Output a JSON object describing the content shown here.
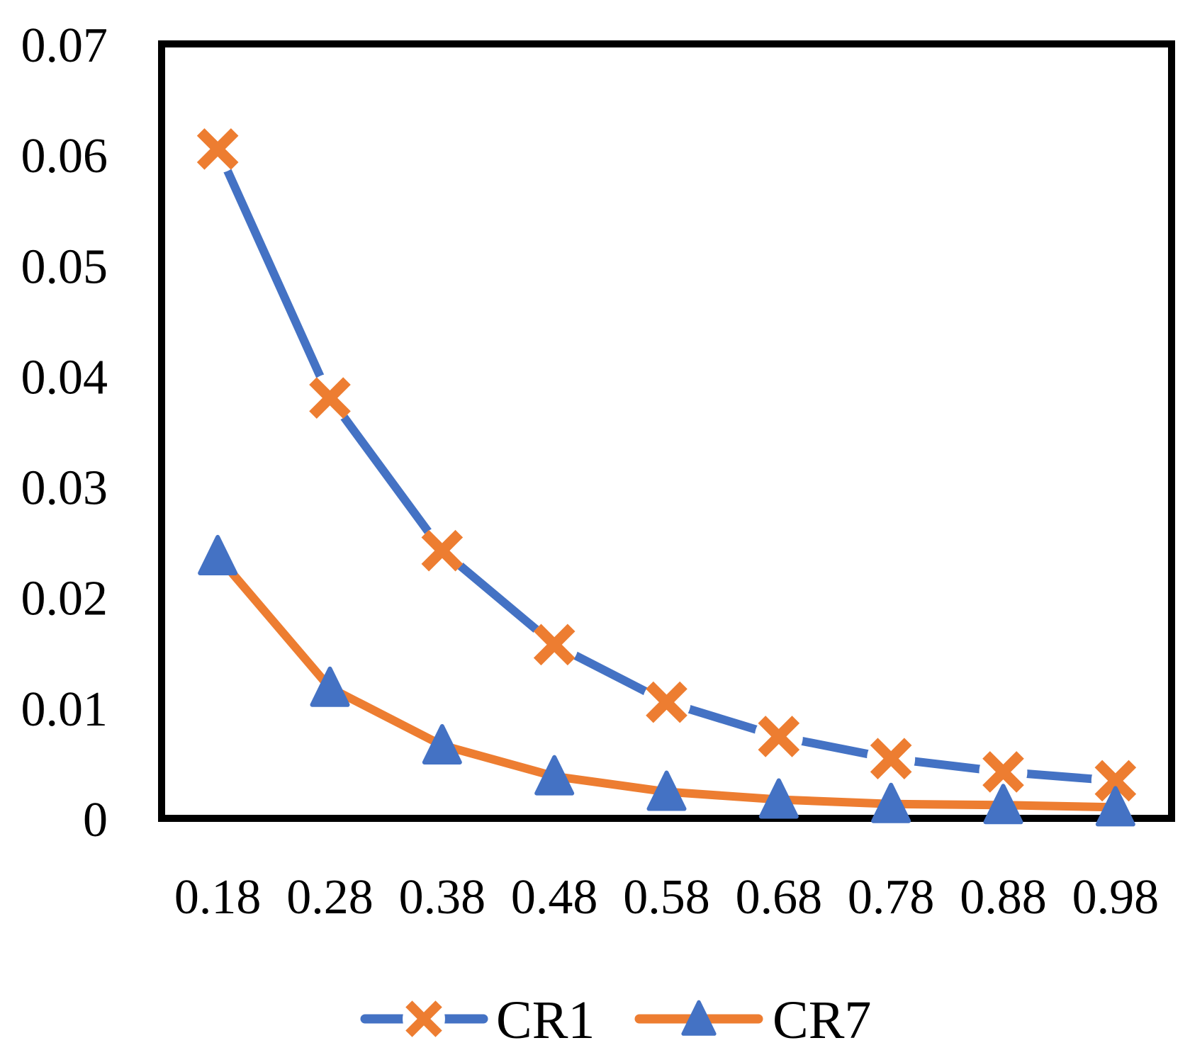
{
  "chart_data": {
    "type": "line",
    "x": [
      0.18,
      0.28,
      0.38,
      0.48,
      0.58,
      0.68,
      0.78,
      0.88,
      0.98
    ],
    "x_tick_labels": [
      "0.18",
      "0.28",
      "0.38",
      "0.48",
      "0.58",
      "0.68",
      "0.78",
      "0.88",
      "0.98"
    ],
    "y_ticks": [
      0,
      0.01,
      0.02,
      0.03,
      0.04,
      0.05,
      0.06,
      0.07
    ],
    "y_tick_labels": [
      "0",
      "0.01",
      "0.02",
      "0.03",
      "0.04",
      "0.05",
      "0.06",
      "0.07"
    ],
    "ylim": [
      0,
      0.07
    ],
    "title": "",
    "xlabel": "",
    "ylabel": "",
    "grid": false,
    "legend_position": "bottom",
    "plot_border_color": "#000000",
    "background_color": "#ffffff",
    "series": [
      {
        "name": "CR1",
        "line_color": "#4472C4",
        "marker": "x",
        "marker_color": "#ED7D31",
        "values": [
          0.0605,
          0.038,
          0.0242,
          0.0157,
          0.0105,
          0.0074,
          0.0054,
          0.0042,
          0.0034
        ]
      },
      {
        "name": "CR7",
        "line_color": "#ED7D31",
        "marker": "triangle",
        "marker_color": "#4472C4",
        "values": [
          0.0237,
          0.0118,
          0.0066,
          0.0038,
          0.0024,
          0.0017,
          0.0013,
          0.0012,
          0.001
        ]
      }
    ]
  }
}
